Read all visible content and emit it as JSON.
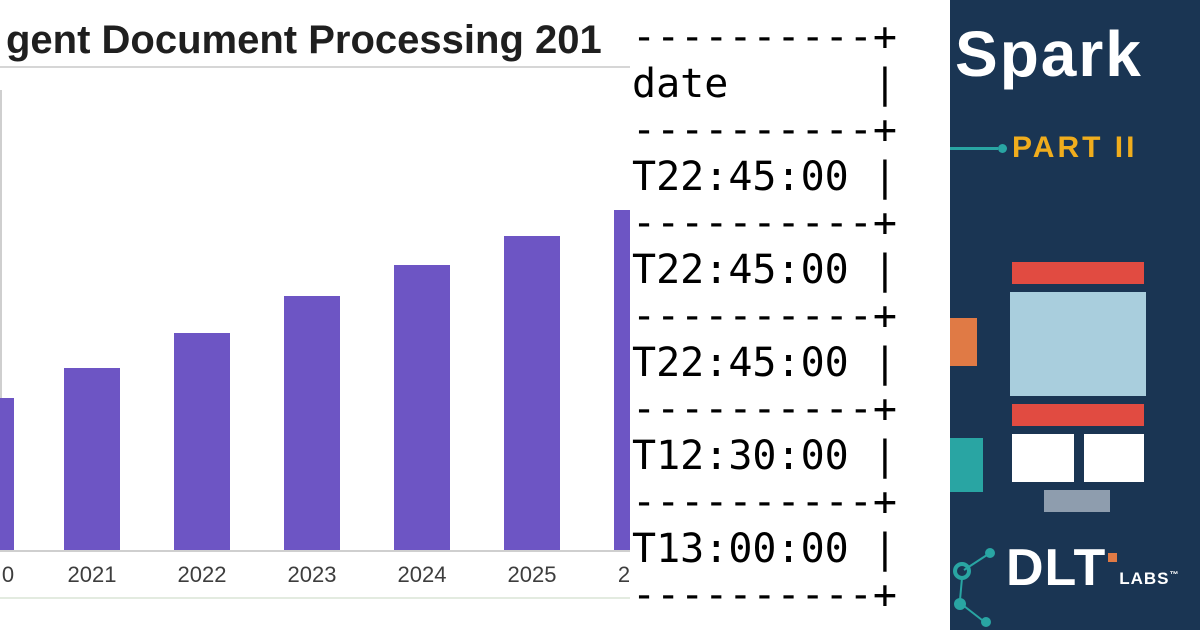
{
  "palette": {
    "bar": "#6d55c4",
    "navy": "#1a3553",
    "red": "#e14b41",
    "orange": "#e07a45",
    "teal": "#29a5a3",
    "lightblue": "#a9cedd",
    "yellow": "#f0ad1d",
    "greybox": "#8e9dae",
    "axis": "#cfcfcf"
  },
  "chart_data": {
    "type": "bar",
    "title": "gent Document Processing 201",
    "categories": [
      "0",
      "2021",
      "2022",
      "2023",
      "2024",
      "2025",
      "2"
    ],
    "values": [
      152,
      182,
      217,
      254,
      285,
      314,
      340
    ],
    "value_scale": "estimated relative bar heights in px (no y-axis tick labels visible)",
    "xlabel": "",
    "ylabel": "",
    "y_axis_labels_visible": false,
    "grid": false,
    "legend": false,
    "bar_color": "#6d55c4"
  },
  "terminal": {
    "lines": [
      "----------+",
      "date      |",
      "----------+",
      "T22:45:00 |",
      "----------+",
      "T22:45:00 |",
      "----------+",
      "T22:45:00 |",
      "----------+",
      "T12:30:00 |",
      "----------+",
      "T13:00:00 |",
      "----------+"
    ]
  },
  "poster": {
    "title": "Spark",
    "subtitle": "PART II",
    "logo": {
      "dlt": "DLT",
      "labs": "LABS",
      "tm": "™"
    }
  }
}
